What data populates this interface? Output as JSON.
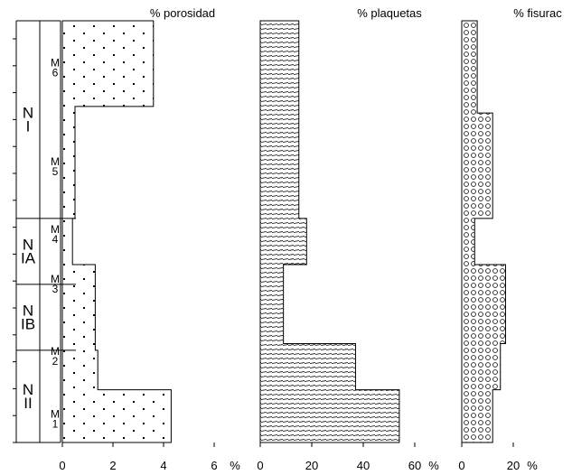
{
  "chart_data": {
    "type": "area",
    "depth_axis": {
      "zones": [
        {
          "label_lines": [
            "N",
            "I"
          ],
          "top": 0,
          "bottom": 15
        },
        {
          "label_lines": [
            "N",
            "IA"
          ],
          "top": 15,
          "bottom": 20
        },
        {
          "label_lines": [
            "N",
            "IB"
          ],
          "top": 20,
          "bottom": 25
        },
        {
          "label_lines": [
            "N",
            "II"
          ],
          "top": 25,
          "bottom": 32
        }
      ],
      "subzones": [
        {
          "label_lines": [
            "M",
            "6"
          ],
          "top": 0,
          "bottom": 7.2
        },
        {
          "label_lines": [
            "M",
            "5"
          ],
          "top": 7.2,
          "bottom": 15
        },
        {
          "label_lines": [
            "M",
            "4"
          ],
          "top": 15,
          "bottom": 17.5
        },
        {
          "label_lines": [
            "M",
            "3"
          ],
          "top": 17.5,
          "bottom": 22.5
        },
        {
          "label_lines": [
            "M",
            "2"
          ],
          "top": 22.5,
          "bottom": 28.5
        },
        {
          "label_lines": [
            "M",
            "1"
          ],
          "top": 28.5,
          "bottom": 32
        }
      ],
      "tick_count": 16
    },
    "panels": [
      {
        "title": "% porosidad",
        "pattern": "dots",
        "xlim": [
          0,
          6
        ],
        "ticks": [
          0,
          2,
          4,
          6
        ],
        "unit_label": "%",
        "steps": [
          {
            "top": 0,
            "bottom": 6.5,
            "value": 3.6
          },
          {
            "top": 6.5,
            "bottom": 15,
            "value": 0.5
          },
          {
            "top": 15,
            "bottom": 18.5,
            "value": 0.4
          },
          {
            "top": 18.5,
            "bottom": 25,
            "value": 1.3
          },
          {
            "top": 25,
            "bottom": 28,
            "value": 1.4
          },
          {
            "top": 28,
            "bottom": 32,
            "value": 4.3
          }
        ]
      },
      {
        "title": "% plaquetas",
        "pattern": "dashes",
        "xlim": [
          0,
          60
        ],
        "ticks": [
          0,
          20,
          40,
          60
        ],
        "unit_label": "%",
        "steps": [
          {
            "top": 0,
            "bottom": 15,
            "value": 15
          },
          {
            "top": 15,
            "bottom": 18.5,
            "value": 18
          },
          {
            "top": 18.5,
            "bottom": 24.5,
            "value": 9
          },
          {
            "top": 24.5,
            "bottom": 28,
            "value": 37
          },
          {
            "top": 28,
            "bottom": 32,
            "value": 54
          }
        ]
      },
      {
        "title": "% fisurac",
        "pattern": "circles",
        "xlim": [
          0,
          20
        ],
        "ticks": [
          0,
          20
        ],
        "unit_label": "%",
        "steps": [
          {
            "top": 0,
            "bottom": 7,
            "value": 6
          },
          {
            "top": 7,
            "bottom": 15,
            "value": 12
          },
          {
            "top": 15,
            "bottom": 18.5,
            "value": 5
          },
          {
            "top": 18.5,
            "bottom": 24.5,
            "value": 17
          },
          {
            "top": 24.5,
            "bottom": 28,
            "value": 15
          },
          {
            "top": 28,
            "bottom": 32,
            "value": 12
          }
        ]
      }
    ]
  }
}
